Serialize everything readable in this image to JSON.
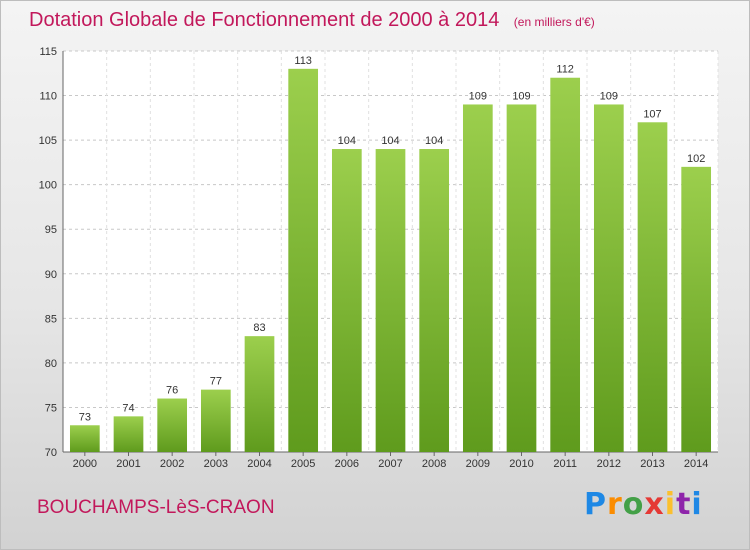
{
  "chart_data": {
    "type": "bar",
    "title": "Dotation Globale de Fonctionnement de 2000 à 2014",
    "subtitle": "(en milliers d'€)",
    "xlabel": "",
    "ylabel": "",
    "categories": [
      "2000",
      "2001",
      "2002",
      "2003",
      "2004",
      "2005",
      "2006",
      "2007",
      "2008",
      "2009",
      "2010",
      "2011",
      "2012",
      "2013",
      "2014"
    ],
    "values": [
      73,
      74,
      76,
      77,
      83,
      113,
      104,
      104,
      104,
      109,
      109,
      112,
      109,
      107,
      102
    ],
    "ylim": [
      70,
      115
    ],
    "yticks": [
      70,
      75,
      80,
      85,
      90,
      95,
      100,
      105,
      110,
      115
    ],
    "grid": true,
    "bar_color": "#8cc63f"
  },
  "commune": "BOUCHAMPS-LèS-CRAON",
  "logo": {
    "letters": [
      "P",
      "r",
      "o",
      "x",
      "i",
      "t",
      "i"
    ],
    "colors": [
      "#1e88e5",
      "#fb8c00",
      "#43a047",
      "#e53935",
      "#fbc02d",
      "#8e24aa",
      "#1e88e5"
    ]
  },
  "colors": {
    "title": "#c2185b",
    "bar": "#8cc63f",
    "bar_dark": "#5f9b1d",
    "grid": "#c8c8c8"
  }
}
